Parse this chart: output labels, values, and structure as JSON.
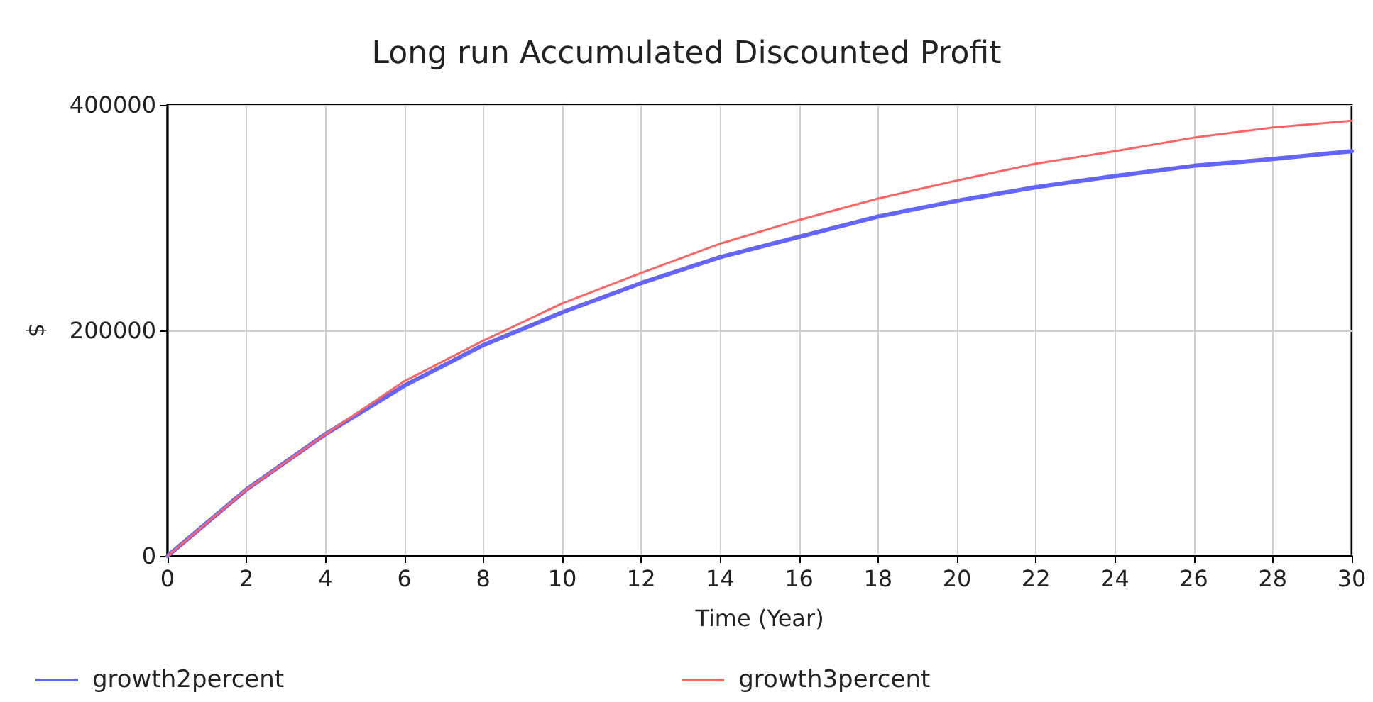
{
  "chart_data": {
    "type": "line",
    "title": "Long run Accumulated Discounted Profit",
    "xlabel": "Time (Year)",
    "ylabel": "$",
    "x": [
      0,
      2,
      4,
      6,
      8,
      10,
      12,
      14,
      16,
      18,
      20,
      22,
      24,
      26,
      28,
      30
    ],
    "series": [
      {
        "name": "growth2percent",
        "color": "#6464ff",
        "values": [
          0,
          59000,
          108000,
          151000,
          187000,
          216000,
          242000,
          265000,
          283000,
          301000,
          315000,
          327000,
          337000,
          346000,
          352000,
          359000
        ]
      },
      {
        "name": "growth3percent",
        "color": "#ff6464",
        "values": [
          0,
          59000,
          108000,
          155000,
          191000,
          224000,
          251000,
          277000,
          298000,
          317000,
          333000,
          348000,
          359000,
          371000,
          380000,
          386000
        ]
      }
    ],
    "xlim": [
      0,
      30
    ],
    "xticks": [
      0,
      2,
      4,
      6,
      8,
      10,
      12,
      14,
      16,
      18,
      20,
      22,
      24,
      26,
      28,
      30
    ],
    "ylim": [
      0,
      400000
    ],
    "yticks": [
      0,
      200000,
      400000
    ],
    "grid": true,
    "legend": "bottom",
    "marker": "none",
    "line_style": "solid"
  }
}
